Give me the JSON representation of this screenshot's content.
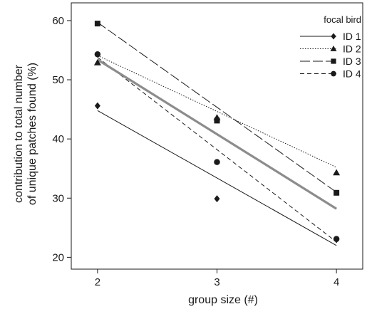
{
  "chart_data": {
    "type": "scatter",
    "xlabel": "group size (#)",
    "ylabel_lines": [
      "contribution to total number",
      "of unique patches found (%)"
    ],
    "xlim": [
      1.78,
      4.22
    ],
    "ylim": [
      18,
      63
    ],
    "x_ticks": [
      2,
      3,
      4
    ],
    "x_tick_labels": [
      "2",
      "3",
      "4"
    ],
    "y_ticks": [
      20,
      30,
      40,
      50,
      60
    ],
    "y_tick_labels": [
      "20",
      "30",
      "40",
      "50",
      "60"
    ],
    "grid": false,
    "legend_title": "focal bird",
    "legend_position": "top-right",
    "series": [
      {
        "name": "ID 1",
        "marker": "diamond",
        "line_style": "solid",
        "x": [
          2,
          3,
          4
        ],
        "y": [
          45.6,
          29.9,
          23.0
        ],
        "fit": [
          [
            2,
            44.8
          ],
          [
            4,
            22.0
          ]
        ]
      },
      {
        "name": "ID 2",
        "marker": "triangle",
        "line_style": "dotted",
        "x": [
          2,
          3,
          4
        ],
        "y": [
          52.9,
          43.6,
          34.3
        ],
        "fit": [
          [
            2,
            54.1
          ],
          [
            4,
            35.2
          ]
        ]
      },
      {
        "name": "ID 3",
        "marker": "square",
        "line_style": "longdash",
        "x": [
          2,
          3,
          4
        ],
        "y": [
          59.5,
          43.1,
          30.9
        ],
        "fit": [
          [
            2,
            59.7
          ],
          [
            4,
            31.0
          ]
        ]
      },
      {
        "name": "ID 4",
        "marker": "circle",
        "line_style": "dashed",
        "x": [
          2,
          3,
          4
        ],
        "y": [
          54.3,
          36.1,
          23.1
        ],
        "fit": [
          [
            2,
            53.8
          ],
          [
            4,
            22.6
          ]
        ]
      }
    ],
    "overall_fit": {
      "color": "#8c8c8c",
      "points": [
        [
          2,
          53.4
        ],
        [
          4,
          28.2
        ]
      ]
    }
  }
}
